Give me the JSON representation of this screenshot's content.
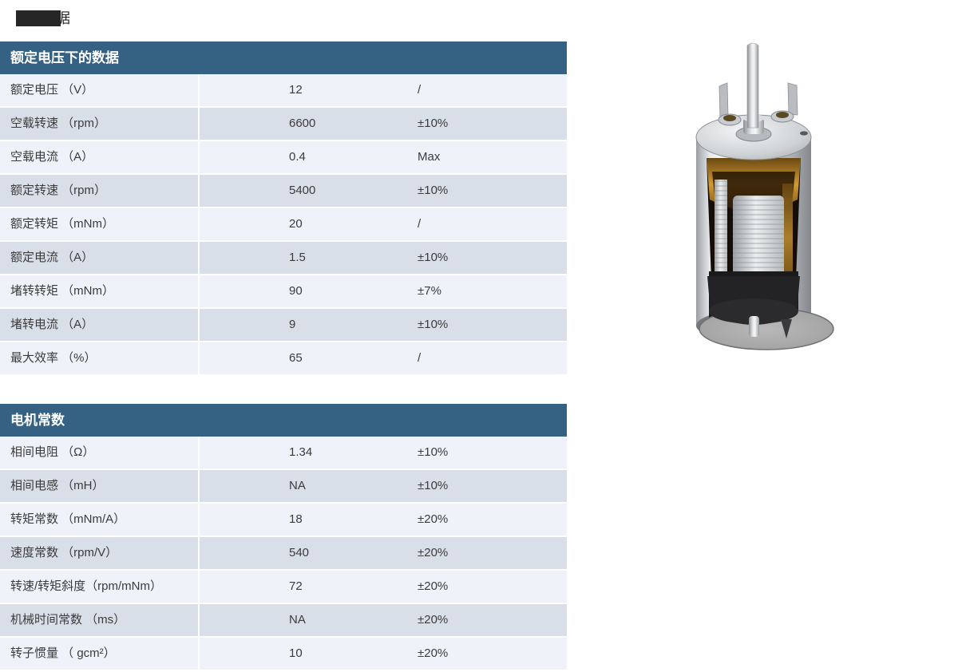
{
  "page": {
    "masked_title": {
      "visible_char": "据"
    }
  },
  "colors": {
    "header_bg": "#356183",
    "row_light": "#eff2f9",
    "row_dark": "#d9dfe8",
    "divider": "#ffffff",
    "text": "#3b3b3b",
    "header_text": "#ffffff",
    "mask_box": "#262626"
  },
  "tables": [
    {
      "title": "额定电压下的数据",
      "rows": [
        {
          "label": "额定电压 （V）",
          "value": "12",
          "tolerance": "/"
        },
        {
          "label": "空载转速 （rpm）",
          "value": "6600",
          "tolerance": "±10%"
        },
        {
          "label": "空载电流 （A）",
          "value": "0.4",
          "tolerance": "Max"
        },
        {
          "label": "额定转速 （rpm）",
          "value": "5400",
          "tolerance": "±10%"
        },
        {
          "label": "额定转矩 （mNm）",
          "value": "20",
          "tolerance": "/"
        },
        {
          "label": "额定电流 （A）",
          "value": "1.5",
          "tolerance": "±10%"
        },
        {
          "label": "堵转转矩 （mNm）",
          "value": "90",
          "tolerance": "±7%"
        },
        {
          "label": "堵转电流 （A）",
          "value": "9",
          "tolerance": "±10%"
        },
        {
          "label": "最大效率 （%）",
          "value": "65",
          "tolerance": "/"
        }
      ]
    },
    {
      "title": "电机常数",
      "rows": [
        {
          "label": "相间电阻 （Ω）",
          "value": "1.34",
          "tolerance": "±10%"
        },
        {
          "label": "相间电感 （mH）",
          "value": "NA",
          "tolerance": "±10%"
        },
        {
          "label": "转矩常数 （mNm/A）",
          "value": "18",
          "tolerance": "±20%"
        },
        {
          "label": "速度常数 （rpm/V）",
          "value": "540",
          "tolerance": "±20%"
        },
        {
          "label": "转速/转矩斜度（rpm/mNm）",
          "value": "72",
          "tolerance": "±20%"
        },
        {
          "label": "机械时间常数 （ms）",
          "value": "NA",
          "tolerance": "±20%"
        },
        {
          "label": "转子惯量 （ gcm²）",
          "value": "10",
          "tolerance": "±20%"
        }
      ]
    }
  ],
  "motor_image": {
    "alt": "motor-cutaway-render"
  }
}
